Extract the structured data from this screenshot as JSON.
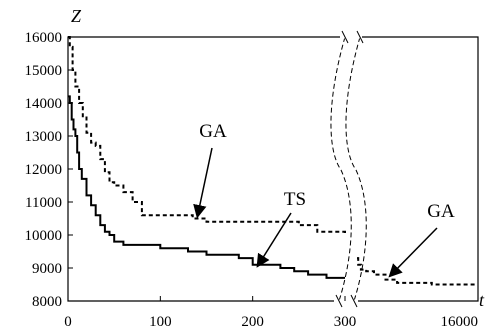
{
  "chart_data": {
    "type": "line",
    "title": "",
    "ylabel": "Z",
    "xlabel": "t",
    "ylim": [
      8000,
      16000
    ],
    "yticks": [
      8000,
      9000,
      10000,
      11000,
      12000,
      13000,
      14000,
      15000,
      16000
    ],
    "x_left_range": [
      0,
      300
    ],
    "x_right_range": [
      300,
      16000
    ],
    "xticks_left": [
      0,
      100,
      200,
      300
    ],
    "xticks_right": [
      16000
    ],
    "axis_break": "double dashed curved lines between the left and right panels",
    "grid": false,
    "legend": "none (series identified by arrow annotations)",
    "series": [
      {
        "name": "GA",
        "style": "dashed",
        "points_left": [
          [
            0,
            16000
          ],
          [
            2,
            15700
          ],
          [
            5,
            15000
          ],
          [
            8,
            14500
          ],
          [
            12,
            14000
          ],
          [
            16,
            13600
          ],
          [
            20,
            13100
          ],
          [
            25,
            12800
          ],
          [
            30,
            12700
          ],
          [
            35,
            12300
          ],
          [
            40,
            11900
          ],
          [
            45,
            11600
          ],
          [
            50,
            11500
          ],
          [
            60,
            11300
          ],
          [
            70,
            11000
          ],
          [
            80,
            10600
          ],
          [
            100,
            10600
          ],
          [
            120,
            10600
          ],
          [
            135,
            10500
          ],
          [
            150,
            10400
          ],
          [
            200,
            10400
          ],
          [
            230,
            10400
          ],
          [
            250,
            10300
          ],
          [
            270,
            10100
          ],
          [
            290,
            10100
          ],
          [
            300,
            10000
          ]
        ],
        "points_right": [
          [
            300,
            9300
          ],
          [
            450,
            9100
          ],
          [
            800,
            8950
          ],
          [
            1500,
            8900
          ],
          [
            2500,
            8800
          ],
          [
            4000,
            8650
          ],
          [
            5500,
            8550
          ],
          [
            7000,
            8550
          ],
          [
            10000,
            8500
          ],
          [
            16000,
            8500
          ]
        ]
      },
      {
        "name": "TS",
        "style": "solid",
        "points_left": [
          [
            0,
            14200
          ],
          [
            2,
            14000
          ],
          [
            4,
            13500
          ],
          [
            6,
            13200
          ],
          [
            8,
            13000
          ],
          [
            10,
            12500
          ],
          [
            12,
            12000
          ],
          [
            15,
            11700
          ],
          [
            20,
            11200
          ],
          [
            25,
            10900
          ],
          [
            30,
            10600
          ],
          [
            35,
            10300
          ],
          [
            40,
            10100
          ],
          [
            45,
            10000
          ],
          [
            50,
            9800
          ],
          [
            60,
            9700
          ],
          [
            80,
            9700
          ],
          [
            100,
            9600
          ],
          [
            120,
            9600
          ],
          [
            130,
            9500
          ],
          [
            150,
            9400
          ],
          [
            170,
            9400
          ],
          [
            185,
            9300
          ],
          [
            200,
            9100
          ],
          [
            230,
            9000
          ],
          [
            245,
            8900
          ],
          [
            260,
            8800
          ],
          [
            280,
            8700
          ],
          [
            300,
            8700
          ]
        ]
      }
    ],
    "annotations": [
      {
        "text": "GA",
        "target_series": "GA",
        "target": [
          140,
          10450
        ]
      },
      {
        "text": "TS",
        "target_series": "TS",
        "target": [
          205,
          8950
        ]
      },
      {
        "text": "GA",
        "target_series": "GA",
        "target": [
          4500,
          8650
        ]
      }
    ]
  }
}
